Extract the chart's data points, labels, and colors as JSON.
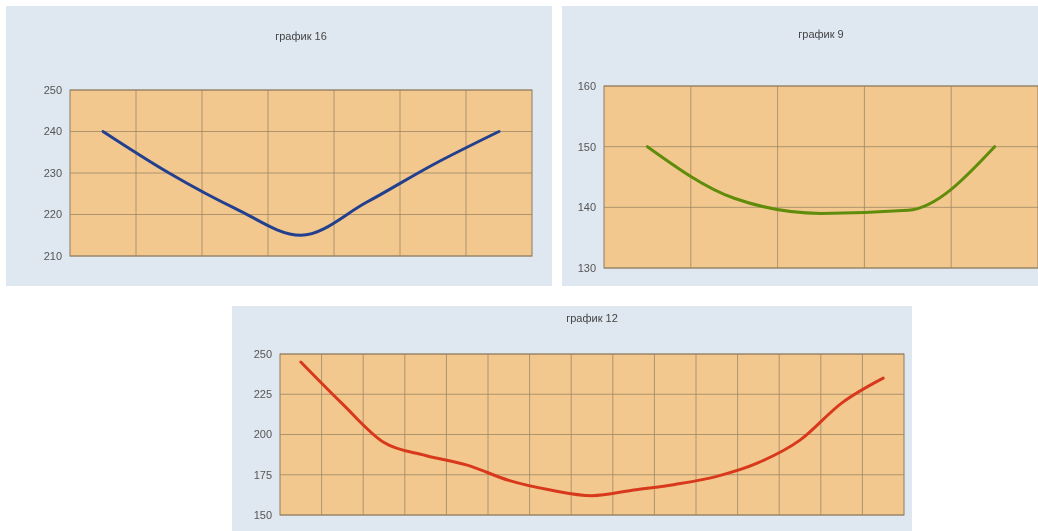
{
  "chart_data": [
    {
      "type": "line",
      "title": "график 16",
      "categories": [
        null,
        null,
        null,
        null,
        null,
        null,
        null
      ],
      "series": [
        {
          "color": "#23408e",
          "values": [
            240,
            230,
            221.5,
            215,
            223,
            232,
            240
          ]
        }
      ],
      "ylim": [
        210,
        250
      ],
      "yticks": [
        210,
        220,
        230,
        240,
        250
      ],
      "grid": true
    },
    {
      "type": "line",
      "title": "график 9",
      "categories": [
        null,
        null,
        null,
        null,
        null
      ],
      "series": [
        {
          "color": "#5f8c0a",
          "values": [
            150,
            141.5,
            139,
            139.5,
            150
          ]
        }
      ],
      "ylim": [
        130,
        160
      ],
      "yticks": [
        130,
        140,
        150,
        160
      ],
      "grid": true
    },
    {
      "type": "line",
      "title": "график 12",
      "categories": [
        null,
        null,
        null,
        null,
        null,
        null,
        null,
        null,
        null,
        null,
        null,
        null,
        null,
        null,
        null
      ],
      "series": [
        {
          "color": "#d8391c",
          "values": [
            245,
            219,
            195,
            187,
            181,
            171.5,
            165.5,
            162,
            165.5,
            169,
            174,
            182.5,
            196.5,
            219.5,
            235
          ]
        }
      ],
      "ylim": [
        150,
        250
      ],
      "yticks": [
        150,
        175,
        200,
        225,
        250
      ],
      "grid": true
    }
  ]
}
